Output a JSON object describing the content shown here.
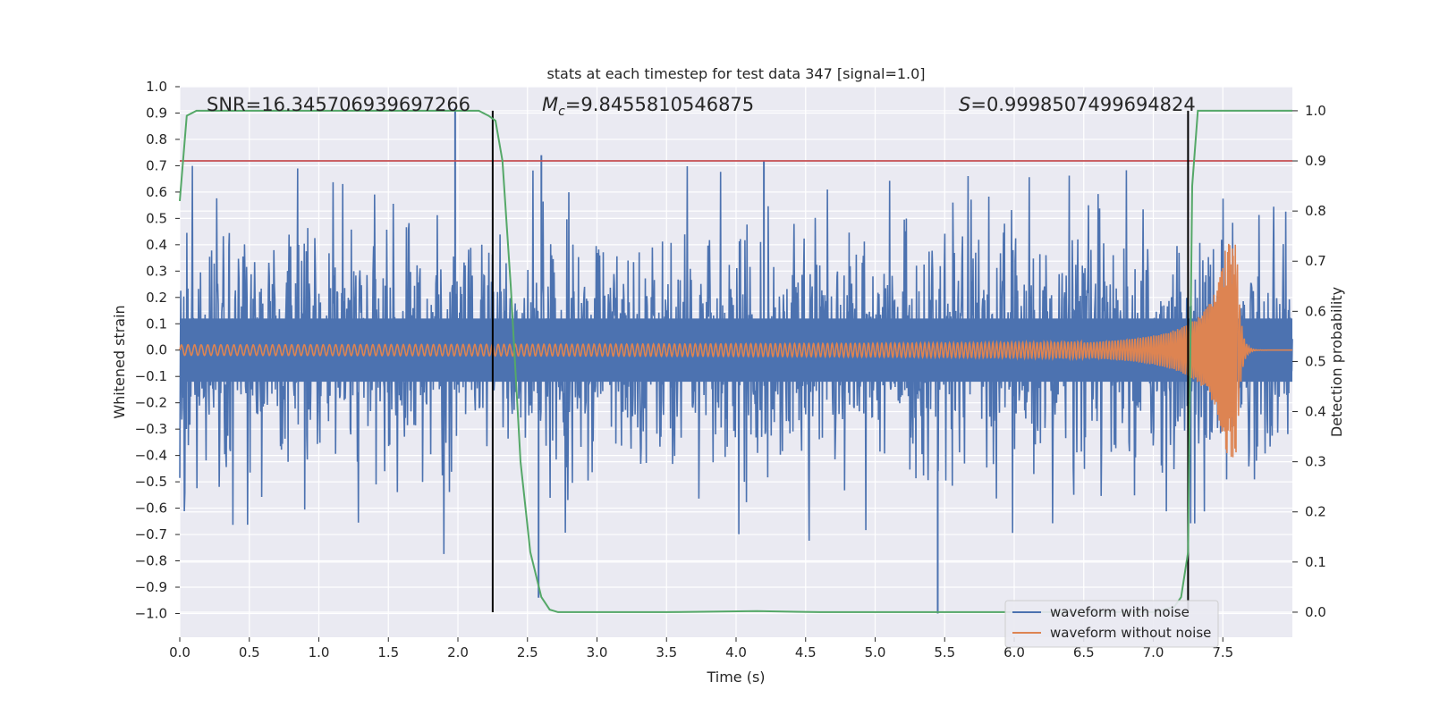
{
  "chart_data": {
    "type": "line",
    "title": "stats at each timestep for test data 347 [signal=1.0]",
    "xlabel": "Time (s)",
    "ylabel_left": "Whitened strain",
    "ylabel_right": "Detection probability",
    "xlim": [
      0.0,
      8.0
    ],
    "ylim_left": [
      -1.09,
      1.0
    ],
    "ylim_right": [
      -0.05,
      1.048
    ],
    "x_ticks": [
      "0.0",
      "0.5",
      "1.0",
      "1.5",
      "2.0",
      "2.5",
      "3.0",
      "3.5",
      "4.0",
      "4.5",
      "5.0",
      "5.5",
      "6.0",
      "6.5",
      "7.0",
      "7.5"
    ],
    "y_ticks_left": [
      "1.0",
      "0.9",
      "0.8",
      "0.7",
      "0.6",
      "0.5",
      "0.4",
      "0.3",
      "0.2",
      "0.1",
      "0.0",
      "−0.1",
      "−0.2",
      "−0.3",
      "−0.4",
      "−0.5",
      "−0.6",
      "−0.7",
      "−0.8",
      "−0.9",
      "−1.0"
    ],
    "y_ticks_right": [
      "1.0",
      "0.9",
      "0.8",
      "0.7",
      "0.6",
      "0.5",
      "0.4",
      "0.3",
      "0.2",
      "0.1",
      "0.0"
    ],
    "annotations": {
      "snr": "SNR=16.345706939697266",
      "mc_symbol": "M",
      "mc_sub": "c",
      "mc_value": "=9.8455810546875",
      "s_symbol": "S",
      "s_value": "=0.9998507499694824"
    },
    "threshold_right": 0.9,
    "vertical_lines_x": [
      2.25,
      7.25
    ],
    "series": [
      {
        "name": "waveform with noise",
        "color": "#4c72b0",
        "amplitude_envelope": 0.35,
        "peak_spikes": [
          {
            "x": 1.98,
            "y": 0.92
          },
          {
            "x": 2.6,
            "y": 0.74
          },
          {
            "x": 4.2,
            "y": 0.72
          },
          {
            "x": 5.45,
            "y": -1.0
          },
          {
            "x": 2.58,
            "y": -0.94
          }
        ]
      },
      {
        "name": "waveform without noise",
        "color": "#dd8452",
        "start_amplitude": 0.02,
        "merger_time": 7.6,
        "peak_amplitude": 0.41
      },
      {
        "name": "detection probability",
        "color": "#55a868",
        "x": [
          0.0,
          0.05,
          0.12,
          0.2,
          0.5,
          1.0,
          1.5,
          2.0,
          2.15,
          2.22,
          2.27,
          2.32,
          2.38,
          2.45,
          2.52,
          2.6,
          2.66,
          2.72,
          2.8,
          3.5,
          4.15,
          4.6,
          5.5,
          6.5,
          7.0,
          7.15,
          7.2,
          7.25,
          7.28,
          7.32,
          7.4,
          7.6,
          8.0
        ],
        "y": [
          0.82,
          0.99,
          1.0,
          1.0,
          1.0,
          1.0,
          1.0,
          1.0,
          1.0,
          0.99,
          0.98,
          0.9,
          0.65,
          0.3,
          0.12,
          0.03,
          0.005,
          0.0,
          0.0,
          0.0,
          0.002,
          0.0,
          0.0,
          0.0,
          0.0,
          0.01,
          0.03,
          0.12,
          0.85,
          1.0,
          1.0,
          1.0,
          1.0
        ]
      },
      {
        "name": "threshold",
        "color": "#c44e52"
      }
    ],
    "legend": [
      "waveform with noise",
      "waveform without noise"
    ],
    "legend_position": "lower-right",
    "grid": true
  }
}
